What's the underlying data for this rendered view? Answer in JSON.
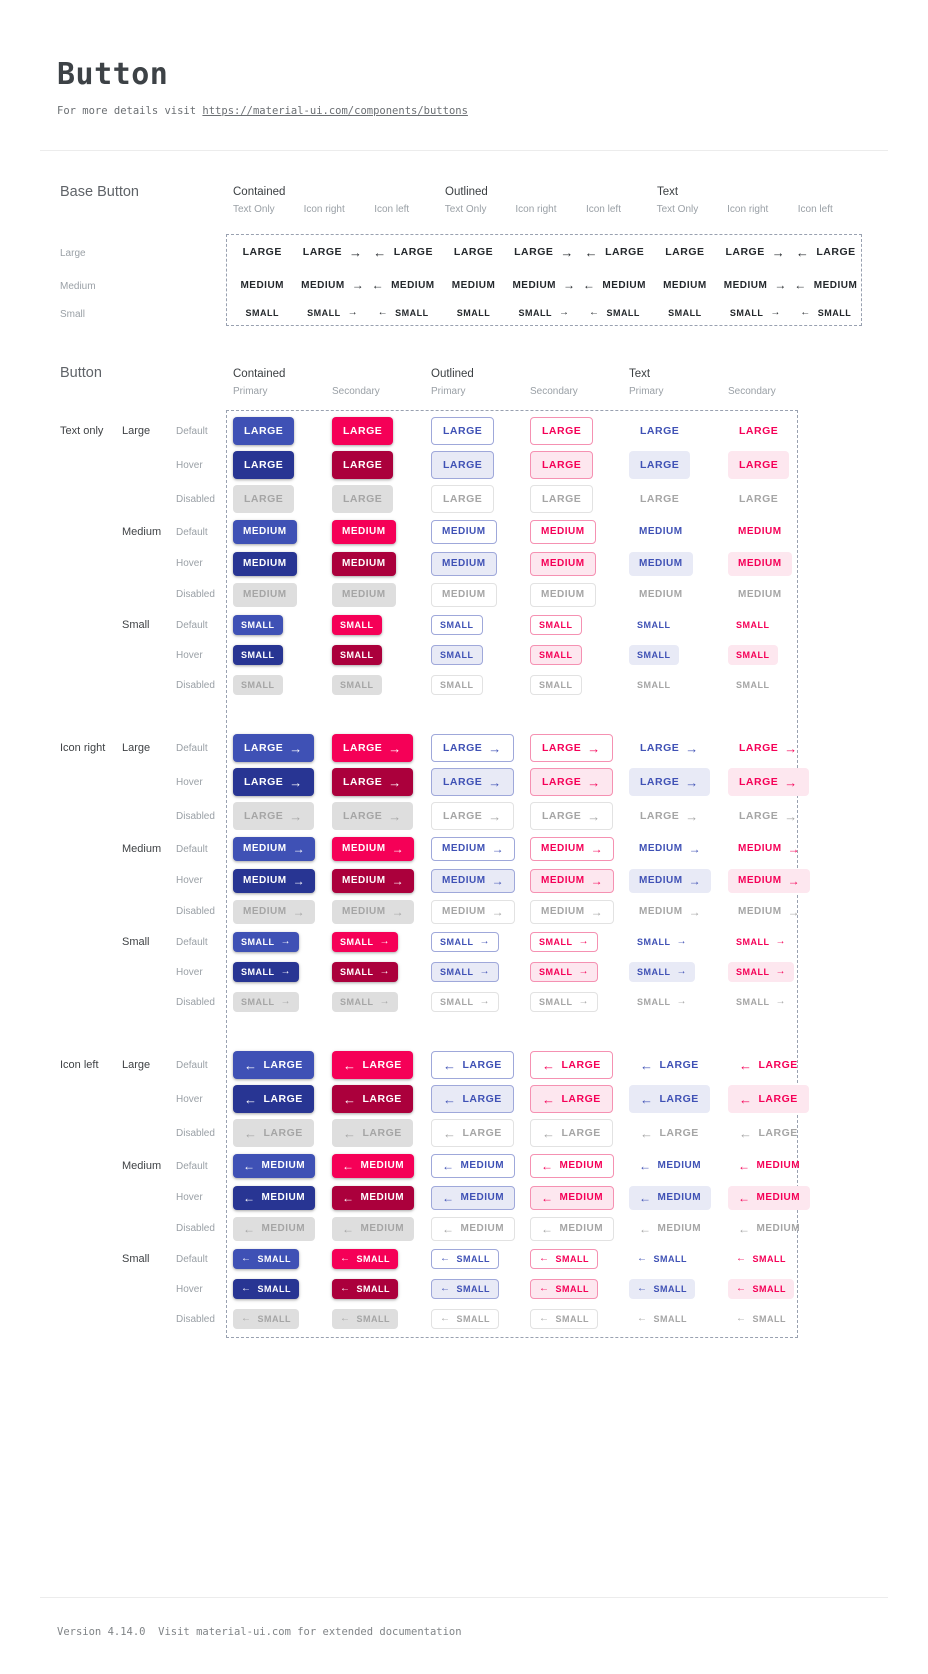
{
  "page": {
    "title": "Button",
    "subtitle_prefix": "For more details visit ",
    "subtitle_link": "https://material-ui.com/components/buttons",
    "footer": "Version 4.14.0  Visit material-ui.com for extended documentation"
  },
  "icons": {
    "arrow_right": "→",
    "arrow_left": "←"
  },
  "colors": {
    "primary": "#3f51b5",
    "primary_hover": "#283593",
    "primary_tint": "#e8eaf6",
    "primary_border": "#9fa8da",
    "secondary": "#f50057",
    "secondary_hover": "#ab003c",
    "secondary_tint": "#fde7ef",
    "secondary_border": "#f591b2",
    "disabled_bg": "#dedede",
    "disabled_text": "#a5a5a5",
    "disabled_border": "#e2e2e2",
    "base_text": "#24282c",
    "dashed_border": "#99a1b0"
  },
  "base_button": {
    "section_title": "Base Button",
    "groups": [
      "Contained",
      "Outlined",
      "Text"
    ],
    "variants": [
      "Text Only",
      "Icon right",
      "Icon left"
    ],
    "sizes": [
      {
        "label": "Large",
        "button_text": "LARGE"
      },
      {
        "label": "Medium",
        "button_text": "MEDIUM"
      },
      {
        "label": "Small",
        "button_text": "SMALL"
      }
    ]
  },
  "button": {
    "section_title": "Button",
    "groups": [
      "Contained",
      "Outlined",
      "Text"
    ],
    "palettes": [
      "Primary",
      "Secondary"
    ],
    "variants": [
      "Text only",
      "Icon right",
      "Icon left"
    ],
    "sizes": [
      {
        "label": "Large",
        "button_text": "LARGE"
      },
      {
        "label": "Medium",
        "button_text": "MEDIUM"
      },
      {
        "label": "Small",
        "button_text": "SMALL"
      }
    ],
    "states": [
      "Default",
      "Hover",
      "Disabled"
    ]
  }
}
